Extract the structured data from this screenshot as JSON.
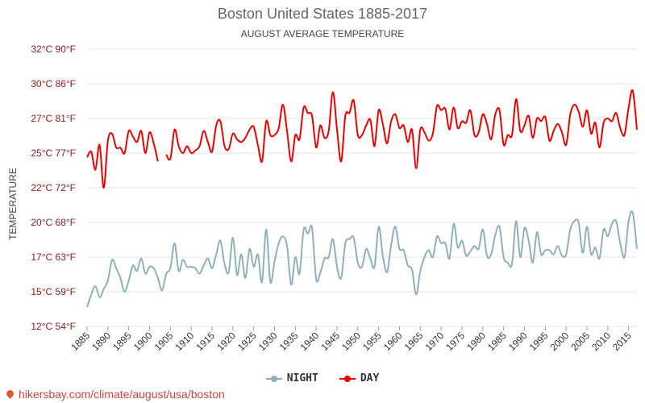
{
  "title": "Boston United States 1885-2017",
  "subtitle": "AUGUST AVERAGE TEMPERATURE",
  "footer": "hikersbay.com/climate/august/usa/boston",
  "chart_data": {
    "type": "line",
    "title": "Boston United States 1885-2017",
    "subtitle": "AUGUST AVERAGE TEMPERATURE",
    "xlabel": "",
    "ylabel": "TEMPERATURE",
    "ylim": [
      12,
      32
    ],
    "x_range": [
      1885,
      2017
    ],
    "y_ticks": [
      {
        "value": 12,
        "label": "12°C 54°F"
      },
      {
        "value": 15,
        "label": "15°C 59°F"
      },
      {
        "value": 17,
        "label": "17°C 63°F"
      },
      {
        "value": 20,
        "label": "20°C 68°F"
      },
      {
        "value": 22,
        "label": "22°C 72°F"
      },
      {
        "value": 25,
        "label": "25°C 77°F"
      },
      {
        "value": 27,
        "label": "27°C 81°F"
      },
      {
        "value": 30,
        "label": "30°C 86°F"
      },
      {
        "value": 32,
        "label": "32°C 90°F"
      }
    ],
    "x_ticks": [
      1885,
      1890,
      1895,
      1900,
      1905,
      1910,
      1915,
      1920,
      1925,
      1930,
      1935,
      1940,
      1945,
      1950,
      1955,
      1960,
      1965,
      1970,
      1975,
      1980,
      1985,
      1990,
      1995,
      2000,
      2005,
      2010,
      2015
    ],
    "grid": true,
    "legend_position": "bottom",
    "series": [
      {
        "name": "NIGHT",
        "color": "#8fb0ba",
        "values": [
          [
            1885,
            13.4
          ],
          [
            1886,
            14.3
          ],
          [
            1887,
            14.9
          ],
          [
            1888,
            14.1
          ],
          [
            1889,
            14.7
          ],
          [
            1890,
            15.3
          ],
          [
            1891,
            16.8
          ],
          [
            1892,
            16.2
          ],
          [
            1893,
            15.5
          ],
          [
            1894,
            14.5
          ],
          [
            1895,
            15.3
          ],
          [
            1896,
            16.4
          ],
          [
            1897,
            16.0
          ],
          [
            1898,
            16.9
          ],
          [
            1899,
            15.8
          ],
          [
            1900,
            16.3
          ],
          [
            1901,
            16.2
          ],
          [
            1902,
            15.5
          ],
          [
            1903,
            14.6
          ],
          [
            1904,
            15.8
          ],
          [
            1905,
            16.2
          ],
          [
            1906,
            18.0
          ],
          [
            1907,
            16.0
          ],
          [
            1908,
            16.8
          ],
          [
            1909,
            16.3
          ],
          [
            1910,
            16.3
          ],
          [
            1911,
            16.2
          ],
          [
            1912,
            15.8
          ],
          [
            1913,
            16.4
          ],
          [
            1914,
            16.9
          ],
          [
            1915,
            16.2
          ],
          [
            1916,
            17.2
          ],
          [
            1917,
            18.2
          ],
          [
            1918,
            16.5
          ],
          [
            1919,
            15.9
          ],
          [
            1920,
            18.4
          ],
          [
            1921,
            15.7
          ],
          [
            1922,
            17.2
          ],
          [
            1923,
            15.5
          ],
          [
            1924,
            17.6
          ],
          [
            1925,
            16.3
          ],
          [
            1926,
            17.2
          ],
          [
            1927,
            15.2
          ],
          [
            1928,
            19.0
          ],
          [
            1929,
            15.2
          ],
          [
            1930,
            16.7
          ],
          [
            1931,
            18.0
          ],
          [
            1932,
            18.5
          ],
          [
            1933,
            17.8
          ],
          [
            1934,
            15.0
          ],
          [
            1935,
            17.0
          ],
          [
            1936,
            15.8
          ],
          [
            1937,
            19.0
          ],
          [
            1938,
            18.7
          ],
          [
            1939,
            19.1
          ],
          [
            1940,
            15.4
          ],
          [
            1941,
            15.9
          ],
          [
            1942,
            16.9
          ],
          [
            1943,
            17.0
          ],
          [
            1944,
            18.3
          ],
          [
            1945,
            16.3
          ],
          [
            1946,
            15.5
          ],
          [
            1947,
            18.0
          ],
          [
            1948,
            18.3
          ],
          [
            1949,
            18.4
          ],
          [
            1950,
            16.6
          ],
          [
            1951,
            16.3
          ],
          [
            1952,
            17.6
          ],
          [
            1953,
            16.9
          ],
          [
            1954,
            16.3
          ],
          [
            1955,
            19.2
          ],
          [
            1956,
            17.1
          ],
          [
            1957,
            15.9
          ],
          [
            1958,
            17.9
          ],
          [
            1959,
            19.2
          ],
          [
            1960,
            17.6
          ],
          [
            1961,
            17.5
          ],
          [
            1962,
            16.4
          ],
          [
            1963,
            16.1
          ],
          [
            1964,
            14.3
          ],
          [
            1965,
            16.0
          ],
          [
            1966,
            17.0
          ],
          [
            1967,
            17.5
          ],
          [
            1968,
            17.0
          ],
          [
            1969,
            18.5
          ],
          [
            1970,
            18.0
          ],
          [
            1971,
            18.0
          ],
          [
            1972,
            16.9
          ],
          [
            1973,
            19.4
          ],
          [
            1974,
            17.7
          ],
          [
            1975,
            18.2
          ],
          [
            1976,
            17.1
          ],
          [
            1977,
            17.4
          ],
          [
            1978,
            17.8
          ],
          [
            1979,
            17.6
          ],
          [
            1980,
            19.0
          ],
          [
            1981,
            17.1
          ],
          [
            1982,
            17.2
          ],
          [
            1983,
            18.6
          ],
          [
            1984,
            19.2
          ],
          [
            1985,
            17.0
          ],
          [
            1986,
            16.6
          ],
          [
            1987,
            16.5
          ],
          [
            1988,
            19.6
          ],
          [
            1989,
            17.0
          ],
          [
            1990,
            19.1
          ],
          [
            1991,
            18.2
          ],
          [
            1992,
            16.6
          ],
          [
            1993,
            18.8
          ],
          [
            1994,
            17.2
          ],
          [
            1995,
            17.5
          ],
          [
            1996,
            17.5
          ],
          [
            1997,
            17.2
          ],
          [
            1998,
            17.8
          ],
          [
            1999,
            17.1
          ],
          [
            2000,
            17.2
          ],
          [
            2001,
            19.0
          ],
          [
            2002,
            19.6
          ],
          [
            2003,
            19.5
          ],
          [
            2004,
            17.3
          ],
          [
            2005,
            19.2
          ],
          [
            2006,
            17.2
          ],
          [
            2007,
            17.7
          ],
          [
            2008,
            16.9
          ],
          [
            2009,
            19.0
          ],
          [
            2010,
            18.5
          ],
          [
            2011,
            19.4
          ],
          [
            2012,
            19.6
          ],
          [
            2013,
            18.0
          ],
          [
            2014,
            17.0
          ],
          [
            2015,
            19.6
          ],
          [
            2016,
            20.2
          ],
          [
            2017,
            17.6
          ]
        ]
      },
      {
        "name": "DAY",
        "color": "#ee0000",
        "values": [
          [
            1885,
            24.2
          ],
          [
            1886,
            24.6
          ],
          [
            1887,
            23.3
          ],
          [
            1888,
            25.1
          ],
          [
            1889,
            22.0
          ],
          [
            1890,
            25.4
          ],
          [
            1891,
            25.9
          ],
          [
            1892,
            24.9
          ],
          [
            1893,
            24.9
          ],
          [
            1894,
            24.5
          ],
          [
            1895,
            26.1
          ],
          [
            1896,
            25.7
          ],
          [
            1897,
            25.3
          ],
          [
            1898,
            26.1
          ],
          [
            1899,
            24.5
          ],
          [
            1900,
            26.0
          ],
          [
            1901,
            25.2
          ],
          [
            1902,
            23.9
          ],
          [
            1903,
            null
          ],
          [
            1904,
            24.4
          ],
          [
            1905,
            24.1
          ],
          [
            1906,
            26.2
          ],
          [
            1907,
            25.0
          ],
          [
            1908,
            24.5
          ],
          [
            1909,
            25.0
          ],
          [
            1910,
            24.5
          ],
          [
            1911,
            24.7
          ],
          [
            1912,
            25.0
          ],
          [
            1913,
            26.1
          ],
          [
            1914,
            25.3
          ],
          [
            1915,
            24.6
          ],
          [
            1916,
            26.5
          ],
          [
            1917,
            26.8
          ],
          [
            1918,
            25.0
          ],
          [
            1919,
            24.8
          ],
          [
            1920,
            25.9
          ],
          [
            1921,
            25.5
          ],
          [
            1922,
            25.3
          ],
          [
            1923,
            25.6
          ],
          [
            1924,
            26.2
          ],
          [
            1925,
            26.4
          ],
          [
            1926,
            25.1
          ],
          [
            1927,
            23.9
          ],
          [
            1928,
            26.8
          ],
          [
            1929,
            25.8
          ],
          [
            1930,
            25.8
          ],
          [
            1931,
            26.3
          ],
          [
            1932,
            28.0
          ],
          [
            1933,
            26.1
          ],
          [
            1934,
            23.9
          ],
          [
            1935,
            25.8
          ],
          [
            1936,
            25.5
          ],
          [
            1937,
            27.8
          ],
          [
            1938,
            27.4
          ],
          [
            1939,
            27.2
          ],
          [
            1940,
            24.9
          ],
          [
            1941,
            26.5
          ],
          [
            1942,
            25.6
          ],
          [
            1943,
            26.1
          ],
          [
            1944,
            28.9
          ],
          [
            1945,
            26.2
          ],
          [
            1946,
            23.9
          ],
          [
            1947,
            27.2
          ],
          [
            1948,
            27.4
          ],
          [
            1949,
            28.3
          ],
          [
            1950,
            25.8
          ],
          [
            1951,
            25.8
          ],
          [
            1952,
            26.5
          ],
          [
            1953,
            26.9
          ],
          [
            1954,
            25.0
          ],
          [
            1955,
            27.6
          ],
          [
            1956,
            26.6
          ],
          [
            1957,
            25.2
          ],
          [
            1958,
            26.8
          ],
          [
            1959,
            27.3
          ],
          [
            1960,
            26.3
          ],
          [
            1961,
            26.5
          ],
          [
            1962,
            25.3
          ],
          [
            1963,
            26.2
          ],
          [
            1964,
            23.4
          ],
          [
            1965,
            26.2
          ],
          [
            1966,
            26.0
          ],
          [
            1967,
            25.4
          ],
          [
            1968,
            25.9
          ],
          [
            1969,
            27.9
          ],
          [
            1970,
            27.6
          ],
          [
            1971,
            27.7
          ],
          [
            1972,
            26.2
          ],
          [
            1973,
            27.8
          ],
          [
            1974,
            26.3
          ],
          [
            1975,
            26.8
          ],
          [
            1976,
            26.7
          ],
          [
            1977,
            27.6
          ],
          [
            1978,
            25.8
          ],
          [
            1979,
            26.0
          ],
          [
            1980,
            27.3
          ],
          [
            1981,
            26.6
          ],
          [
            1982,
            25.5
          ],
          [
            1983,
            27.3
          ],
          [
            1984,
            27.6
          ],
          [
            1985,
            25.1
          ],
          [
            1986,
            25.8
          ],
          [
            1987,
            25.8
          ],
          [
            1988,
            28.4
          ],
          [
            1989,
            26.1
          ],
          [
            1990,
            26.5
          ],
          [
            1991,
            27.2
          ],
          [
            1992,
            25.6
          ],
          [
            1993,
            27.0
          ],
          [
            1994,
            26.8
          ],
          [
            1995,
            27.1
          ],
          [
            1996,
            25.4
          ],
          [
            1997,
            26.1
          ],
          [
            1998,
            26.6
          ],
          [
            1999,
            26.0
          ],
          [
            2000,
            25.1
          ],
          [
            2001,
            27.3
          ],
          [
            2002,
            28.0
          ],
          [
            2003,
            27.5
          ],
          [
            2004,
            26.4
          ],
          [
            2005,
            27.6
          ],
          [
            2006,
            25.9
          ],
          [
            2007,
            26.7
          ],
          [
            2008,
            24.9
          ],
          [
            2009,
            26.7
          ],
          [
            2010,
            27.0
          ],
          [
            2011,
            26.8
          ],
          [
            2012,
            27.4
          ],
          [
            2013,
            26.3
          ],
          [
            2014,
            25.8
          ],
          [
            2015,
            27.8
          ],
          [
            2016,
            29.0
          ],
          [
            2017,
            26.2
          ]
        ]
      }
    ]
  }
}
